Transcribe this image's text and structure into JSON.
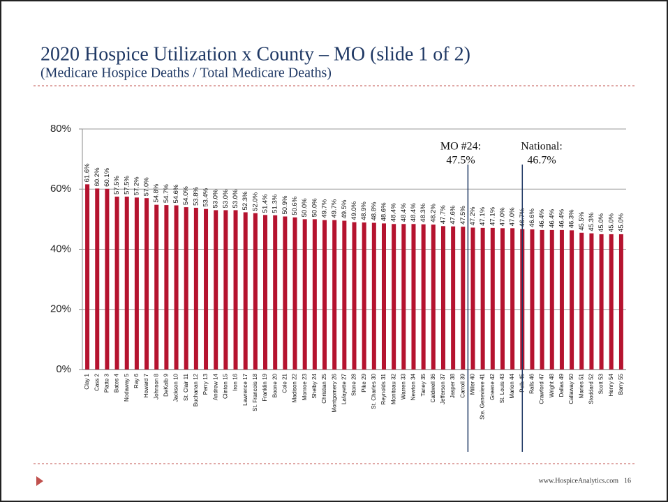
{
  "slide": {
    "title": "2020 Hospice Utilization x County – MO (slide 1 of 2)",
    "subtitle": "(Medicare Hospice Deaths / Total Medicare Deaths)",
    "footer": "www.HospiceAnalytics.com",
    "page_number": "16"
  },
  "chart_data": {
    "type": "bar",
    "color": "#b5132f",
    "grid": true,
    "categories": [
      "Clay 1",
      "Cass 2",
      "Platte 3",
      "Bates 4",
      "Nodaway 5",
      "Ray 6",
      "Howard 7",
      "Johnson 8",
      "DeKalb 9",
      "Jackson 10",
      "St. Clair 11",
      "Buchanan 12",
      "Perry 13",
      "Andrew 14",
      "Clinton 15",
      "Iron 16",
      "Lawrence 17",
      "St. Francois 18",
      "Franklin 19",
      "Boone 20",
      "Cole 21",
      "Madison 22",
      "Monroe 23",
      "Shelby 24",
      "Christian 25",
      "Montgomery 26",
      "Lafayette 27",
      "Stone 28",
      "Pike 29",
      "St. Charles 30",
      "Reynolds 31",
      "Moniteau 32",
      "Warren 33",
      "Newton 34",
      "Taney 35",
      "Caldwell 36",
      "Jefferson 37",
      "Jasper 38",
      "Carroll 39",
      "Miller 40",
      "Ste. Genevieve 41",
      "Greene 42",
      "St. Louis 43",
      "Marion 44",
      "Polk 45",
      "Ralls 46",
      "Crawford 47",
      "Wright 48",
      "Dallas 49",
      "Callaway 50",
      "Maries 51",
      "Stoddard 52",
      "Scott 53",
      "Henry 54",
      "Barry 55"
    ],
    "values": [
      61.6,
      60.2,
      60.1,
      57.5,
      57.5,
      57.2,
      57.0,
      54.8,
      54.7,
      54.6,
      54.0,
      53.8,
      53.4,
      53.0,
      53.0,
      53.0,
      52.3,
      52.0,
      51.4,
      51.3,
      50.9,
      50.6,
      50.0,
      50.0,
      49.7,
      49.7,
      49.5,
      49.0,
      48.9,
      48.8,
      48.6,
      48.4,
      48.4,
      48.4,
      48.3,
      48.2,
      47.7,
      47.6,
      47.5,
      47.2,
      47.1,
      47.1,
      47.0,
      47.0,
      46.7,
      46.6,
      46.4,
      46.4,
      46.4,
      46.3,
      45.5,
      45.3,
      45.0,
      45.0,
      45.0
    ],
    "value_labels": [
      "61.6%",
      "60.2%",
      "60.1%",
      "57.5%",
      "57.5%",
      "57.2%",
      "57.0%",
      "54.8%",
      "54.7%",
      "54.6%",
      "54.0%",
      "53.8%",
      "53.4%",
      "53.0%",
      "53.0%",
      "53.0%",
      "52.3%",
      "52.0%",
      "51.4%",
      "51.3%",
      "50.9%",
      "50.6%",
      "50.0%",
      "50.0%",
      "49.7%",
      "49.7%",
      "49.5%",
      "49.0%",
      "48.9%",
      "48.8%",
      "48.6%",
      "48.4%",
      "48.4%",
      "48.4%",
      "48.3%",
      "48.2%",
      "47.7%",
      "47.6%",
      "47.5%",
      "47.2%",
      "47.1%",
      "47.1%",
      "47.0%",
      "47.0%",
      "46.7%",
      "46.6%",
      "46.4%",
      "46.4%",
      "46.4%",
      "46.3%",
      "45.5%",
      "45.3%",
      "45.0%",
      "45.0%",
      "45.0%"
    ],
    "ylim": [
      0,
      80
    ],
    "yticks": [
      {
        "value": 0,
        "label": "0%"
      },
      {
        "value": 20,
        "label": "20%"
      },
      {
        "value": 40,
        "label": "40%"
      },
      {
        "value": 60,
        "label": "60%"
      },
      {
        "value": 80,
        "label": "80%"
      }
    ],
    "annotations": [
      {
        "label": "MO #24:",
        "value_label": "47.5%"
      },
      {
        "label": "National:",
        "value_label": "46.7%"
      }
    ]
  }
}
